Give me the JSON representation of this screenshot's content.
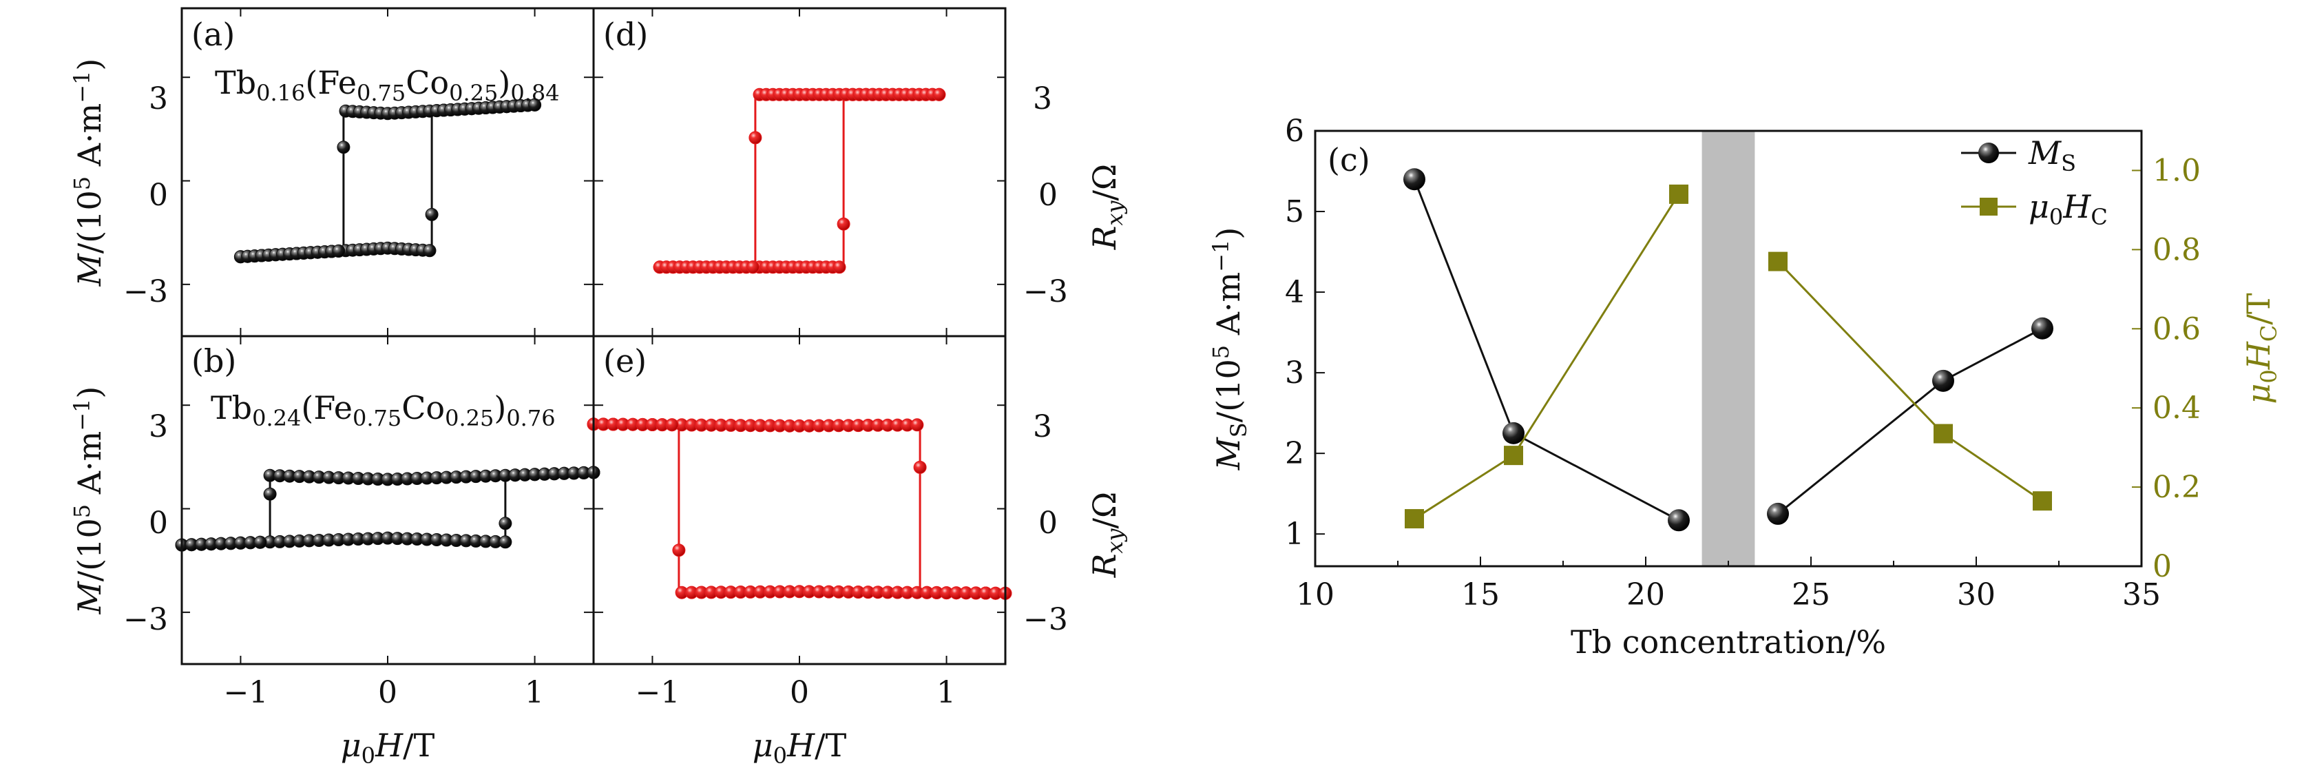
{
  "colors": {
    "black_series": "#111111",
    "red_series": "#e41a1c",
    "olive_series": "#7f7f10",
    "gap_band": "#bdbdbd"
  },
  "panels": {
    "a": {
      "tag": "(a)",
      "composition": {
        "base": "Tb",
        "sub1": "0.16",
        "mid1": "(Fe",
        "sub2": "0.75",
        "mid2": "Co",
        "sub3": "0.25",
        "mid3": ")",
        "sub4": "0.84"
      },
      "xlim": [
        -1.4,
        1.4
      ],
      "ylim": [
        -4.5,
        5.0
      ],
      "loop": {
        "Hc": 0.3,
        "Ms": 2.2,
        "Mlow": 1.95,
        "hmax": 1.0
      }
    },
    "b": {
      "tag": "(b)",
      "composition": {
        "base": "Tb",
        "sub1": "0.24",
        "mid1": "(Fe",
        "sub2": "0.75",
        "mid2": "Co",
        "sub3": "0.25",
        "mid3": ")",
        "sub4": "0.76"
      },
      "xlim": [
        -1.4,
        1.4
      ],
      "ylim": [
        -4.5,
        5.0
      ],
      "loop": {
        "Hc": 0.8,
        "Ms": 1.05,
        "Mlow": 0.85,
        "hmax": 1.4
      }
    },
    "d": {
      "tag": "(d)",
      "xlim": [
        -1.4,
        1.4
      ],
      "ylim": [
        -4.5,
        5.0
      ],
      "loop": {
        "Hc": 0.3,
        "Ms": 2.5,
        "Mlow": 2.5,
        "hmax": 0.95
      }
    },
    "e": {
      "tag": "(e)",
      "xlim": [
        -1.4,
        1.4
      ],
      "ylim": [
        -4.5,
        5.0
      ],
      "loop": {
        "Hc": 0.82,
        "Ms": 2.45,
        "Mlow": 2.4,
        "hmax": 1.4,
        "inverted": true
      }
    }
  },
  "left_axis": {
    "ylabel": {
      "italic": "M",
      "pre": "/(10",
      "sup": "5",
      "post": " A·m",
      "sup2": "−1",
      "close": ")"
    },
    "yticks": [
      -3,
      0,
      3
    ],
    "ytick_labels": [
      "−3",
      "0",
      "3"
    ]
  },
  "right_axis": {
    "ylabel": {
      "italic": "R",
      "sub": "xy",
      "post": "/Ω"
    },
    "yticks": [
      -3,
      0,
      3
    ],
    "ytick_labels": [
      "−3",
      "0",
      "3"
    ]
  },
  "bottom_axis": {
    "xlabel": {
      "pre": "μ",
      "sub": "0",
      "italic": "H",
      "post": "/T"
    },
    "xticks": [
      -1,
      0,
      1
    ],
    "xtick_labels": [
      "−1",
      "0",
      "1"
    ]
  },
  "chart_data": {
    "type": "line",
    "panel": "(c)",
    "xlabel": "Tb concentration/%",
    "xlim": [
      10,
      35
    ],
    "xticks": [
      10,
      15,
      20,
      25,
      30,
      35
    ],
    "ylim_left": [
      0.6,
      6
    ],
    "yticks_left": [
      1,
      2,
      3,
      4,
      5,
      6
    ],
    "ylim_right": [
      0,
      1.1
    ],
    "yticks_right": [
      "0",
      "0.2",
      "0.4",
      "0.6",
      "0.8",
      "1.0"
    ],
    "ylabel_left": {
      "base": "M",
      "sub": "S",
      "rest": "/(10",
      "sup": "5",
      "tail": " A·m",
      "sup2": "−1",
      "close": ")"
    },
    "ylabel_right": {
      "pre": "μ",
      "sub0": "0",
      "H": "H",
      "subC": "C",
      "post": "/T"
    },
    "gap_region": [
      21.7,
      23.3
    ],
    "legend_position": "top-right",
    "series": [
      {
        "name": "MS",
        "legend": {
          "base": "M",
          "sub": "S"
        },
        "axis": "left",
        "marker": "sphere",
        "x": [
          13,
          16,
          21,
          24,
          29,
          32
        ],
        "y": [
          5.4,
          2.25,
          1.17,
          1.25,
          2.9,
          3.55
        ]
      },
      {
        "name": "μ0HC",
        "legend": {
          "pre": "μ",
          "sub0": "0",
          "H": "H",
          "subC": "C"
        },
        "axis": "right",
        "marker": "square",
        "x": [
          13,
          16,
          21,
          24,
          29,
          32
        ],
        "y": [
          0.12,
          0.28,
          0.94,
          0.77,
          0.335,
          0.165
        ]
      }
    ]
  }
}
